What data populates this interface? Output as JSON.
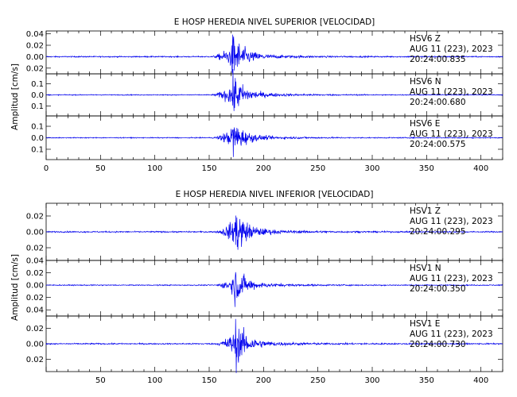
{
  "chart_data": [
    {
      "type": "line",
      "title": "E HOSP HEREDIA NIVEL SUPERIOR [VELOCIDAD]",
      "ylabel": "Amplitud [cm/s]",
      "xlabel": "",
      "xlim": [
        0,
        420
      ],
      "x_ticks": [
        0,
        50,
        100,
        150,
        200,
        250,
        300,
        350,
        400
      ],
      "x_tick_labels_shown": true,
      "line_color": "#0000ee",
      "grid": false,
      "signal_summary": {
        "onset_x": 152,
        "peak_x": 171,
        "coda_end_x": 230
      },
      "traces": [
        {
          "label_line1": "HSV6   Z",
          "label_line2": "AUG 11 (223), 2023",
          "label_line3": "20:24:00.835",
          "ylim": [
            -0.03,
            0.045
          ],
          "yticks": [
            0.04,
            0.02,
            0.0,
            -0.02
          ],
          "ytick_labels": [
            "0.04",
            "0.02",
            "0.00",
            "0.02"
          ],
          "noise_amp": 0.0012,
          "peak_amp": 0.05
        },
        {
          "label_line1": "HSV6   N",
          "label_line2": "AUG 11 (223), 2023",
          "label_line3": "20:24:00.680",
          "ylim": [
            -0.19,
            0.19
          ],
          "yticks": [
            0.1,
            0.0,
            -0.1
          ],
          "ytick_labels": [
            "0.1",
            "0.0",
            "0.1"
          ],
          "noise_amp": 0.004,
          "peak_amp": 0.2
        },
        {
          "label_line1": "HSV6   E",
          "label_line2": "AUG 11 (223), 2023",
          "label_line3": "20:24:00.575",
          "ylim": [
            -0.19,
            0.19
          ],
          "yticks": [
            0.1,
            0.0,
            -0.1
          ],
          "ytick_labels": [
            "0.1",
            "0.0",
            "0.1"
          ],
          "noise_amp": 0.004,
          "peak_amp": 0.17
        }
      ]
    },
    {
      "type": "line",
      "title": "E HOSP HEREDIA NIVEL INFERIOR [VELOCIDAD]",
      "ylabel": "Amplitud [cm/s]",
      "xlabel": "",
      "xlim": [
        0,
        420
      ],
      "x_ticks": [
        50,
        100,
        150,
        200,
        250,
        300,
        350,
        400
      ],
      "x_tick_labels_shown": true,
      "line_color": "#0000ee",
      "grid": false,
      "signal_summary": {
        "onset_x": 155,
        "peak_x": 173,
        "coda_end_x": 235
      },
      "traces": [
        {
          "label_line1": "HSV1   Z",
          "label_line2": "AUG 11 (223), 2023",
          "label_line3": "20:24:00.295",
          "ylim": [
            -0.036,
            0.036
          ],
          "yticks": [
            0.02,
            0.0,
            -0.02
          ],
          "ytick_labels": [
            "0.02",
            "0.00",
            "0.02"
          ],
          "noise_amp": 0.0008,
          "peak_amp": 0.032
        },
        {
          "label_line1": "HSV1   N",
          "label_line2": "AUG 11 (223), 2023",
          "label_line3": "20:24:00.350",
          "ylim": [
            -0.05,
            0.04
          ],
          "yticks": [
            0.04,
            0.02,
            0.0,
            -0.02,
            -0.04
          ],
          "ytick_labels": [
            "0.04",
            "0.02",
            "0.00",
            "0.02",
            "0.04"
          ],
          "noise_amp": 0.0009,
          "peak_amp": 0.035
        },
        {
          "label_line1": "HSV1   E",
          "label_line2": "AUG 11 (223), 2023",
          "label_line3": "20:24:00.730",
          "ylim": [
            -0.036,
            0.036
          ],
          "yticks": [
            0.02,
            0.0,
            -0.02
          ],
          "ytick_labels": [
            "0.02",
            "0.00",
            "0.02"
          ],
          "noise_amp": 0.0008,
          "peak_amp": 0.033
        }
      ]
    }
  ]
}
